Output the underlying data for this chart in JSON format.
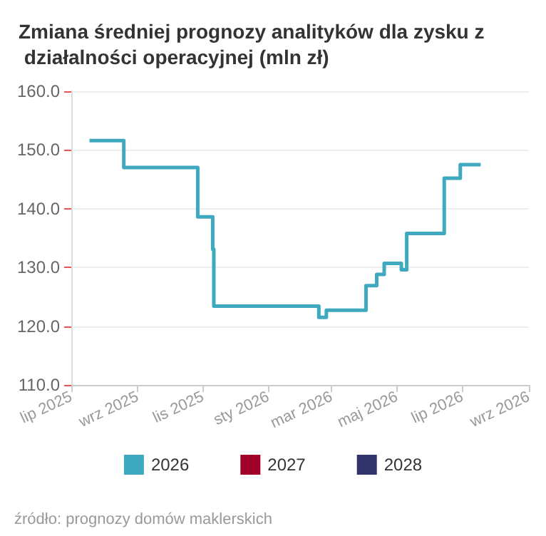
{
  "chart_data": {
    "type": "step",
    "title": "Zmiana średniej prognozy analityków dla zysku z działalności operacyjnej (mln zł)",
    "x": [
      "2025-07-18",
      "2025-08-19",
      "2025-10-27",
      "2025-11-10",
      "2025-11-11",
      "2026-02-17",
      "2026-02-24",
      "2026-04-02",
      "2026-04-12",
      "2026-04-19",
      "2026-05-05",
      "2026-05-10",
      "2026-06-14",
      "2026-06-29",
      "2026-07-18"
    ],
    "series": [
      {
        "name": "2026",
        "color": "#3fa9bf",
        "values": [
          151.6,
          147.0,
          138.6,
          133.1,
          123.4,
          121.5,
          122.7,
          126.9,
          128.8,
          130.7,
          129.6,
          135.8,
          145.2,
          147.5,
          147.5
        ]
      },
      {
        "name": "2027",
        "color": "#a0002a",
        "values": [
          null,
          null,
          null,
          null,
          null,
          null,
          null,
          null,
          null,
          null,
          null,
          null,
          null,
          null,
          null
        ]
      },
      {
        "name": "2028",
        "color": "#33336b",
        "values": [
          null,
          null,
          null,
          null,
          null,
          null,
          null,
          null,
          null,
          null,
          null,
          null,
          null,
          null,
          null
        ]
      }
    ],
    "xlim": [
      "2025-07-01",
      "2026-09-01"
    ],
    "xticks": [
      {
        "value": "2025-07-01",
        "label": "lip 2025"
      },
      {
        "value": "2025-09-01",
        "label": "wrz 2025"
      },
      {
        "value": "2025-11-01",
        "label": "lis 2025"
      },
      {
        "value": "2026-01-01",
        "label": "sty 2026"
      },
      {
        "value": "2026-03-01",
        "label": "mar 2026"
      },
      {
        "value": "2026-05-01",
        "label": "maj 2026"
      },
      {
        "value": "2026-07-01",
        "label": "lip 2026"
      },
      {
        "value": "2026-09-01",
        "label": "wrz 2026"
      }
    ],
    "ylim": [
      110,
      160
    ],
    "yticks": [
      {
        "value": 110,
        "label": "110.0"
      },
      {
        "value": 120,
        "label": "120.0"
      },
      {
        "value": 130,
        "label": "130.0"
      },
      {
        "value": 140,
        "label": "140.0"
      },
      {
        "value": 150,
        "label": "150.0"
      },
      {
        "value": 160,
        "label": "160.0"
      }
    ],
    "grid": "y",
    "legend": "bottom",
    "marker": "none",
    "line_style": "solid",
    "annotations": [
      "źródło: prognozy domów maklerskich"
    ]
  }
}
